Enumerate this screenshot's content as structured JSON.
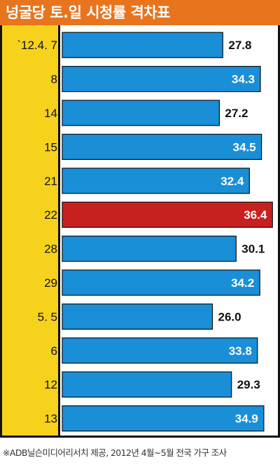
{
  "title": "넝굴당 토.일 시청률 격차표",
  "source": "※ADB닐슨미디어리서치 제공, 2012년 4월~5월 전국 가구 조사",
  "colors": {
    "title_bg": "#e8741e",
    "label_bg": "#f7d21c",
    "bar": "#1a8fd8",
    "highlight_bar": "#c8201f",
    "text_inside": "#ffffff",
    "text_outside": "#111111"
  },
  "chart_data": {
    "type": "bar",
    "orientation": "horizontal",
    "categories": [
      "`12.4. 7",
      "8",
      "14",
      "15",
      "21",
      "22",
      "28",
      "29",
      "5. 5",
      "6",
      "12",
      "13"
    ],
    "values": [
      27.8,
      34.3,
      27.2,
      34.5,
      32.4,
      36.4,
      30.1,
      34.2,
      26.0,
      33.8,
      29.3,
      34.9
    ],
    "value_labels": [
      "27.8",
      "34.3",
      "27.2",
      "34.5",
      "32.4",
      "36.4",
      "30.1",
      "34.2",
      "26.0",
      "33.8",
      "29.3",
      "34.9"
    ],
    "highlight_index": 5,
    "xlim": [
      0,
      40
    ],
    "grid": false
  }
}
